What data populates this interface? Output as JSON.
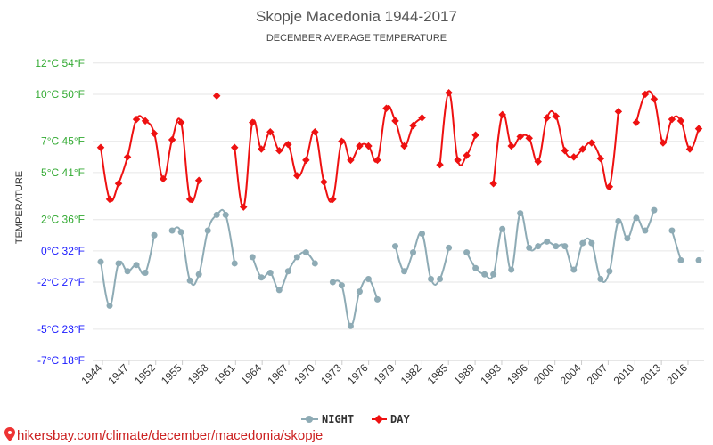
{
  "chart_data": {
    "type": "line",
    "title": "Skopje Macedonia 1944-2017",
    "subtitle": "DECEMBER AVERAGE TEMPERATURE",
    "ylabel": "TEMPERATURE",
    "ylim": [
      -7,
      12.5
    ],
    "y_ticks": [
      {
        "value": -7,
        "label": "-7°C 18°F",
        "color": "#1a1aff"
      },
      {
        "value": -5,
        "label": "-5°C 23°F",
        "color": "#1a1aff"
      },
      {
        "value": -2,
        "label": "-2°C 27°F",
        "color": "#1a1aff"
      },
      {
        "value": 0,
        "label": "0°C 32°F",
        "color": "#1a1aff"
      },
      {
        "value": 2,
        "label": "2°C 36°F",
        "color": "#33aa33"
      },
      {
        "value": 5,
        "label": "5°C 41°F",
        "color": "#33aa33"
      },
      {
        "value": 7,
        "label": "7°C 45°F",
        "color": "#33aa33"
      },
      {
        "value": 10,
        "label": "10°C 50°F",
        "color": "#33aa33"
      },
      {
        "value": 12,
        "label": "12°C 54°F",
        "color": "#33aa33"
      }
    ],
    "x_tick_labels": [
      "1944",
      "1947",
      "1952",
      "1955",
      "1958",
      "1961",
      "1964",
      "1967",
      "1970",
      "1973",
      "1976",
      "1979",
      "1982",
      "1985",
      "1989",
      "1993",
      "1996",
      "2000",
      "2004",
      "2007",
      "2010",
      "2013",
      "2016"
    ],
    "grid": true,
    "legend_position": "bottom",
    "series": [
      {
        "name": "NIGHT",
        "color": "#8eabb5",
        "values": [
          -0.7,
          -3.5,
          -0.8,
          -1.3,
          -0.9,
          -1.4,
          1.0,
          null,
          1.3,
          1.2,
          -1.9,
          -1.5,
          1.3,
          2.3,
          2.3,
          -0.8,
          null,
          -0.4,
          -1.7,
          -1.4,
          -2.5,
          -1.3,
          -0.4,
          -0.1,
          -0.8,
          null,
          -2.0,
          -2.2,
          -4.8,
          -2.6,
          -1.8,
          -3.1,
          null,
          0.3,
          -1.3,
          -0.1,
          1.1,
          -1.8,
          -1.8,
          0.2,
          null,
          -0.1,
          -1.1,
          -1.5,
          -1.5,
          1.4,
          -1.2,
          2.4,
          0.2,
          0.3,
          0.6,
          0.3,
          0.3,
          -1.2,
          0.5,
          0.5,
          -1.8,
          -1.3,
          1.9,
          0.8,
          2.1,
          1.3,
          2.6,
          null,
          1.3,
          -0.6,
          null,
          -0.6
        ]
      },
      {
        "name": "DAY",
        "color": "#ee1111",
        "values": [
          6.6,
          3.3,
          4.3,
          6.0,
          8.4,
          8.3,
          7.5,
          4.6,
          7.1,
          8.2,
          3.3,
          4.5,
          null,
          9.9,
          null,
          6.6,
          2.8,
          8.2,
          6.5,
          7.6,
          6.4,
          6.8,
          4.8,
          5.8,
          7.6,
          4.4,
          3.3,
          7.0,
          5.8,
          6.7,
          6.7,
          5.8,
          9.1,
          8.3,
          6.7,
          8.0,
          8.5,
          null,
          5.5,
          10.1,
          5.8,
          6.1,
          7.4,
          null,
          4.3,
          8.7,
          6.7,
          7.3,
          7.2,
          5.7,
          8.5,
          8.6,
          6.4,
          6.0,
          6.5,
          6.9,
          5.9,
          4.1,
          8.9,
          null,
          8.2,
          10.0,
          9.7,
          6.9,
          8.4,
          8.3,
          6.5,
          7.8
        ]
      }
    ]
  },
  "footer": {
    "url": "hikersbay.com/climate/december/macedonia/skopje",
    "pin_icon": "map-pin-icon"
  }
}
